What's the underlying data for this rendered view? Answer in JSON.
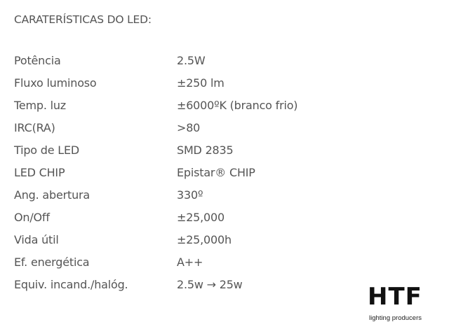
{
  "title": "CARATERÍSTICAS DO LED:",
  "specs": [
    {
      "label": "Potência",
      "value": "2.5W"
    },
    {
      "label": "Fluxo luminoso",
      "value": "±250 lm"
    },
    {
      "label": "Temp. luz",
      "value": "±6000ºK (branco frio)"
    },
    {
      "label": "IRC(RA)",
      "value": ">80"
    },
    {
      "label": "Tipo de LED",
      "value": "SMD 2835"
    },
    {
      "label": "LED CHIP",
      "value": "Epistar® CHIP"
    },
    {
      "label": "Ang. abertura",
      "value": "330º"
    },
    {
      "label": "On/Off",
      "value": "±25,000"
    },
    {
      "label": "Vida útil",
      "value": "±25,000h"
    },
    {
      "label": "Ef. energética",
      "value": "A++"
    },
    {
      "label": "Equiv. incand./halóg.",
      "value": "2.5w → 25w"
    }
  ],
  "logo": {
    "brand": "HTF",
    "tagline": "lighting producers"
  }
}
